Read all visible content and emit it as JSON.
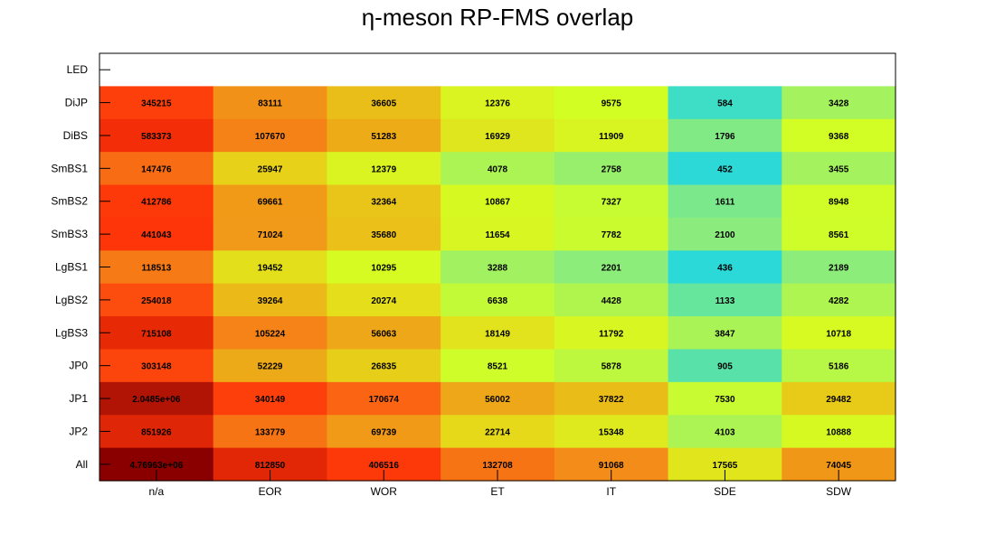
{
  "chart_data": {
    "type": "heatmap",
    "title": "η-meson RP-FMS overlap",
    "x_categories": [
      "n/a",
      "EOR",
      "WOR",
      "ET",
      "IT",
      "SDE",
      "SDW"
    ],
    "y_categories": [
      "LED",
      "DiJP",
      "DiBS",
      "SmBS1",
      "SmBS2",
      "SmBS3",
      "LgBS1",
      "LgBS2",
      "LgBS3",
      "JP0",
      "JP1",
      "JP2",
      "All"
    ],
    "values": [
      [
        null,
        null,
        null,
        null,
        null,
        null,
        null
      ],
      [
        345215,
        83111,
        36605,
        12376,
        9575,
        584,
        3428
      ],
      [
        583373,
        107670,
        51283,
        16929,
        11909,
        1796,
        9368
      ],
      [
        147476,
        25947,
        12379,
        4078,
        2758,
        452,
        3455
      ],
      [
        412786,
        69661,
        32364,
        10867,
        7327,
        1611,
        8948
      ],
      [
        441043,
        71024,
        35680,
        11654,
        7782,
        2100,
        8561
      ],
      [
        118513,
        19452,
        10295,
        3288,
        2201,
        436,
        2189
      ],
      [
        254018,
        39264,
        20274,
        6638,
        4428,
        1133,
        4282
      ],
      [
        715108,
        105224,
        56063,
        18149,
        11792,
        3847,
        10718
      ],
      [
        303148,
        52229,
        26835,
        8521,
        5878,
        905,
        5186
      ],
      [
        2048500,
        340149,
        170674,
        56002,
        37822,
        7530,
        29482
      ],
      [
        851926,
        133779,
        69739,
        22714,
        15348,
        4103,
        10888
      ],
      [
        4769630,
        812850,
        406516,
        132708,
        91068,
        17565,
        74045
      ]
    ],
    "labels": [
      [
        "",
        "",
        "",
        "",
        "",
        "",
        ""
      ],
      [
        "345215",
        "83111",
        "36605",
        "12376",
        "9575",
        "584",
        "3428"
      ],
      [
        "583373",
        "107670",
        "51283",
        "16929",
        "11909",
        "1796",
        "9368"
      ],
      [
        "147476",
        "25947",
        "12379",
        "4078",
        "2758",
        "452",
        "3455"
      ],
      [
        "412786",
        "69661",
        "32364",
        "10867",
        "7327",
        "1611",
        "8948"
      ],
      [
        "441043",
        "71024",
        "35680",
        "11654",
        "7782",
        "2100",
        "8561"
      ],
      [
        "118513",
        "19452",
        "10295",
        "3288",
        "2201",
        "436",
        "2189"
      ],
      [
        "254018",
        "39264",
        "20274",
        "6638",
        "4428",
        "1133",
        "4282"
      ],
      [
        "715108",
        "105224",
        "56063",
        "18149",
        "11792",
        "3847",
        "10718"
      ],
      [
        "303148",
        "52229",
        "26835",
        "8521",
        "5878",
        "905",
        "5186"
      ],
      [
        "2.0485e+06",
        "340149",
        "170674",
        "56002",
        "37822",
        "7530",
        "29482"
      ],
      [
        "851926",
        "133779",
        "69739",
        "22714",
        "15348",
        "4103",
        "10888"
      ],
      [
        "4.76963e+06",
        "812850",
        "406516",
        "132708",
        "91068",
        "17565",
        "74045"
      ]
    ],
    "color_scale": "log",
    "palette": [
      "#2bd9d9",
      "#5be3a6",
      "#8aec7e",
      "#b0f54e",
      "#d4fe23",
      "#e5dd1a",
      "#ecb218",
      "#f48718",
      "#fc5510",
      "#fd3208",
      "#d62205",
      "#ad1205",
      "#8a0000"
    ],
    "grid": false,
    "legend": "none"
  }
}
